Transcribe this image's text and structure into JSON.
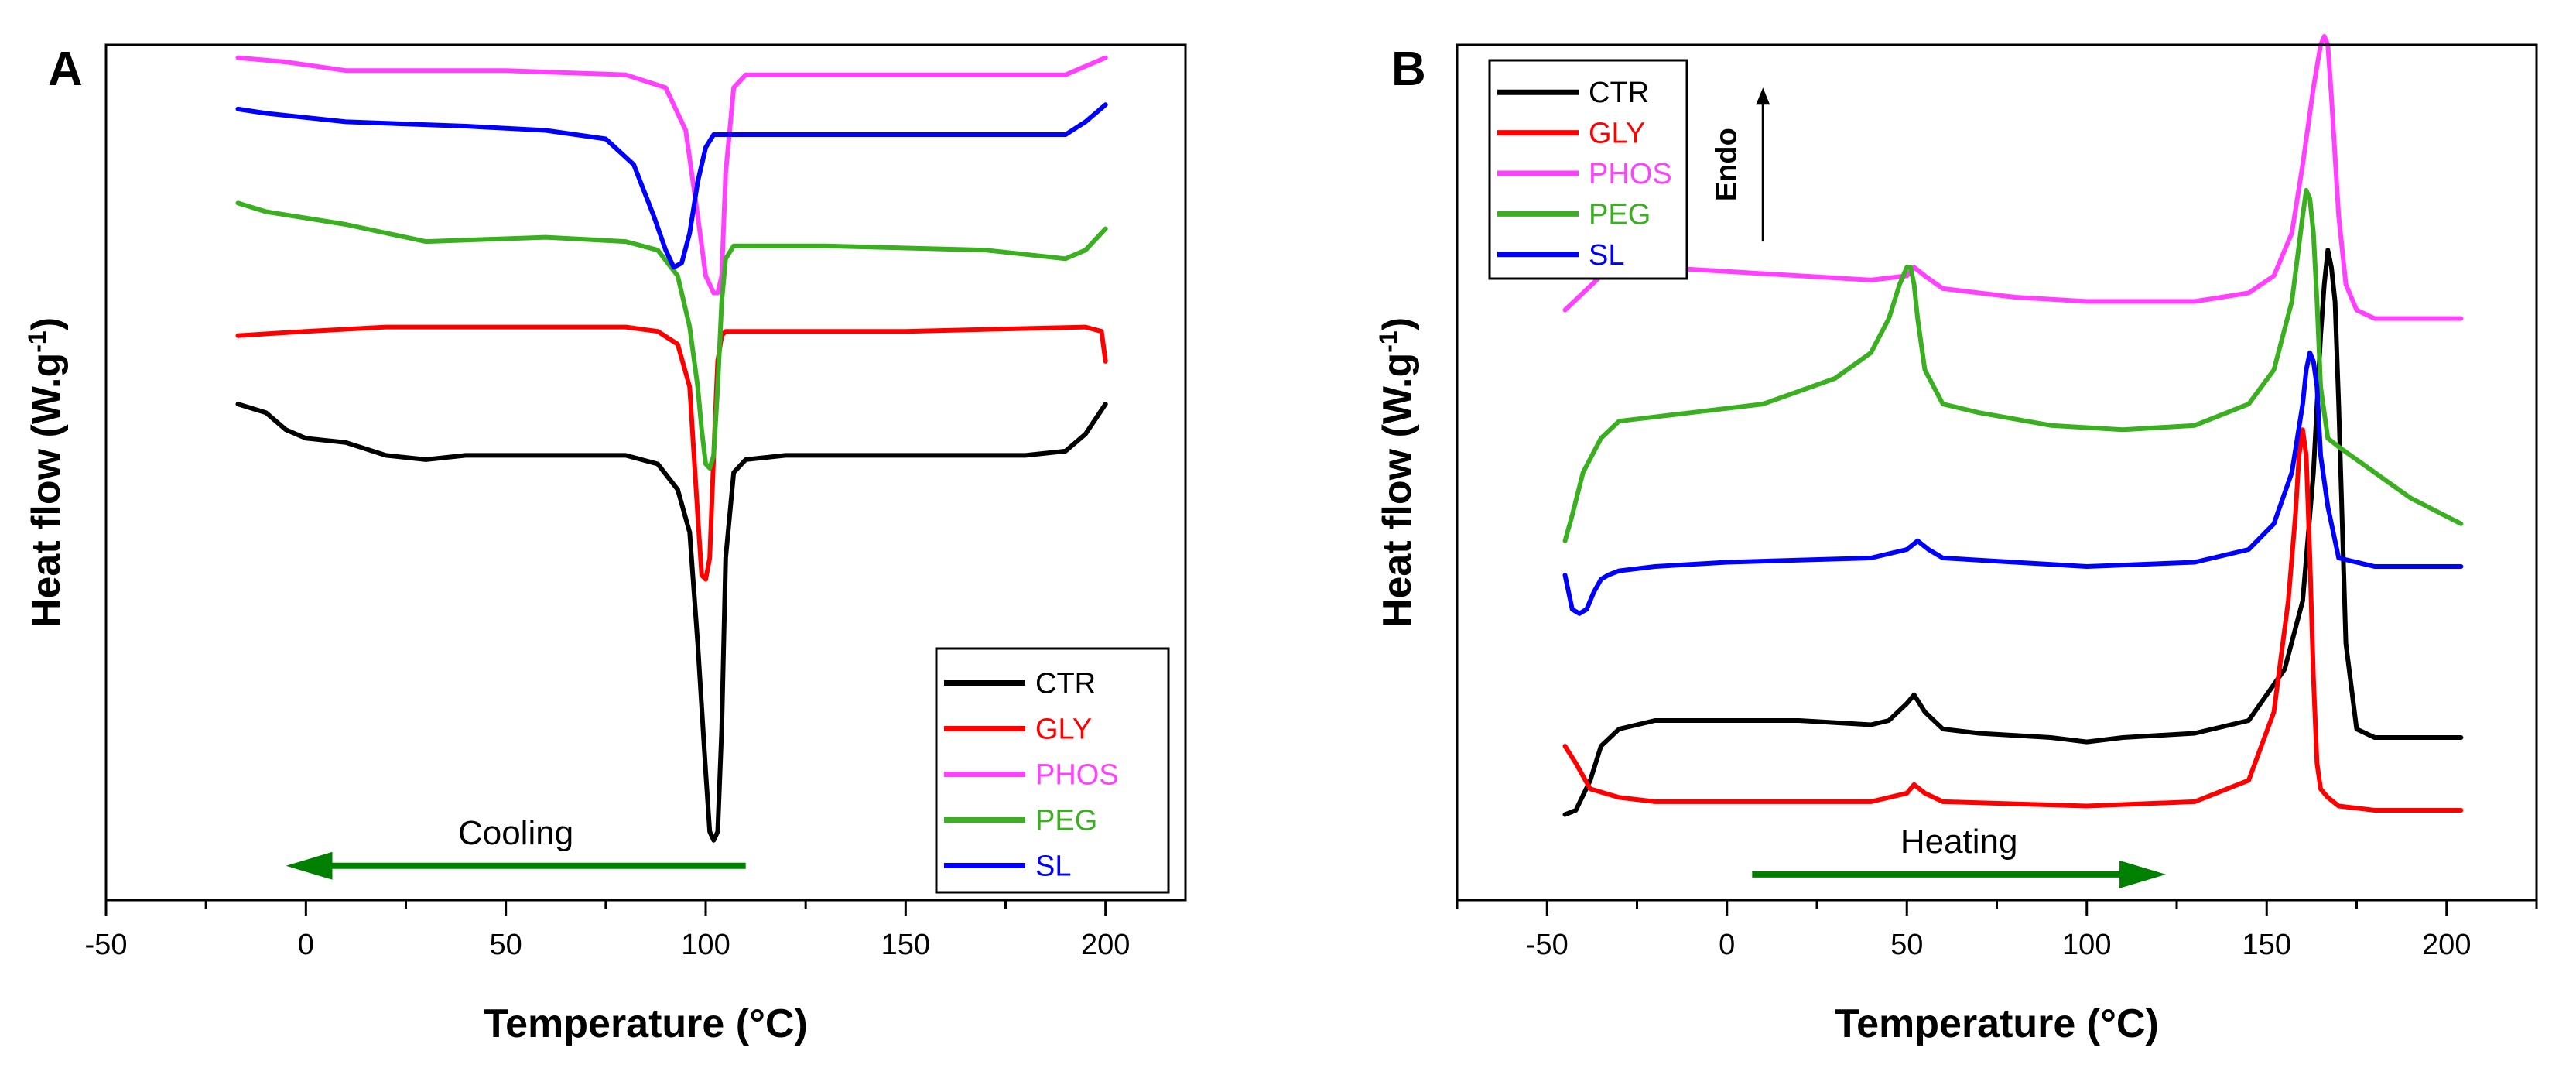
{
  "chart_data": [
    {
      "type": "line",
      "panel_label": "A",
      "xlabel": "Temperature (°C)",
      "ylabel_main": "Heat flow (W.g",
      "ylabel_sup": "-1",
      "ylabel_end": ")",
      "xlim": [
        -50,
        220
      ],
      "ylim": [
        0,
        100
      ],
      "xticks": [
        -50,
        0,
        50,
        100,
        150,
        200
      ],
      "yticks_shown": false,
      "legend_position": "bottom-right",
      "arrow": {
        "label": "Cooling",
        "direction": "left",
        "color": "#008000",
        "from_x": 110,
        "to_x": -5,
        "y": 4
      },
      "series": [
        {
          "name": "CTR",
          "color": "#000000",
          "x": [
            -17,
            -10,
            -5,
            0,
            10,
            20,
            30,
            40,
            60,
            80,
            88,
            93,
            96,
            98,
            100,
            101,
            102,
            103,
            104,
            105,
            107,
            110,
            120,
            150,
            180,
            190,
            195,
            200
          ],
          "y": [
            58,
            57,
            55,
            54,
            53.5,
            52,
            51.5,
            52,
            52,
            52,
            51,
            48,
            43,
            30,
            15,
            8,
            7,
            8,
            20,
            40,
            50,
            51.5,
            52,
            52,
            52,
            52.5,
            54.5,
            58
          ]
        },
        {
          "name": "GLY",
          "color": "#ff0000",
          "x": [
            -17,
            0,
            20,
            50,
            80,
            88,
            93,
            96,
            98,
            99,
            100,
            101,
            102,
            103,
            104,
            105,
            107,
            110,
            150,
            195,
            199,
            200
          ],
          "y": [
            66,
            66.5,
            67,
            67,
            67,
            66.5,
            65,
            60,
            45,
            38,
            37.5,
            40,
            52,
            63,
            66,
            66.5,
            66.5,
            66.5,
            66.5,
            67,
            66.5,
            63
          ]
        },
        {
          "name": "PHOS",
          "color": "#ff40ff",
          "x": [
            -17,
            -5,
            10,
            50,
            80,
            90,
            95,
            98,
            100,
            101,
            102,
            103,
            104,
            105,
            107,
            110,
            130,
            190,
            195,
            200
          ],
          "y": [
            98.5,
            98,
            97,
            97,
            96.5,
            95,
            90,
            80,
            73,
            72,
            71,
            71,
            73,
            85,
            95,
            96.5,
            96.5,
            96.5,
            97.5,
            98.5
          ]
        },
        {
          "name": "PEG",
          "color": "#3ab020",
          "x": [
            -17,
            -10,
            10,
            30,
            60,
            80,
            88,
            93,
            96,
            98,
            99,
            100,
            101,
            102,
            103,
            104,
            105,
            107,
            110,
            130,
            170,
            190,
            195,
            200
          ],
          "y": [
            81.5,
            80.5,
            79,
            77,
            77.5,
            77,
            76,
            73,
            67,
            60,
            55,
            51,
            50.5,
            52,
            60,
            70,
            75,
            76.5,
            76.5,
            76.5,
            76,
            75,
            76,
            78.5
          ]
        },
        {
          "name": "SL",
          "color": "#0000ff",
          "x": [
            -17,
            -10,
            10,
            40,
            60,
            75,
            82,
            87,
            90,
            92,
            94,
            96,
            98,
            100,
            102,
            105,
            110,
            130,
            160,
            190,
            195,
            200
          ],
          "y": [
            92.5,
            92,
            91,
            90.5,
            90,
            89,
            86,
            80,
            76,
            74,
            74.5,
            78,
            84,
            88,
            89.5,
            89.5,
            89.5,
            89.5,
            89.5,
            89.5,
            91,
            93
          ]
        }
      ]
    },
    {
      "type": "line",
      "panel_label": "B",
      "xlabel": "Temperature (°C)",
      "ylabel_main": "Heat flow (W.g",
      "ylabel_sup": "-1",
      "ylabel_end": ")",
      "xlim": [
        -75,
        225
      ],
      "ylim": [
        0,
        100
      ],
      "xticks": [
        -50,
        0,
        50,
        100,
        150,
        200
      ],
      "yticks_shown": false,
      "legend_position": "top-left",
      "annotation": {
        "label": "Endo",
        "direction": "up",
        "x": 10,
        "y_from": 77,
        "y_to": 95
      },
      "arrow": {
        "label": "Heating",
        "direction": "right",
        "color": "#008000",
        "from_x": 7,
        "to_x": 122,
        "y": 3
      },
      "series": [
        {
          "name": "CTR",
          "color": "#000000",
          "x": [
            -45,
            -42,
            -38,
            -35,
            -30,
            -20,
            0,
            20,
            40,
            45,
            50,
            52,
            55,
            60,
            70,
            90,
            100,
            110,
            130,
            145,
            155,
            160,
            163,
            165,
            166,
            167,
            168,
            169,
            170,
            172,
            175,
            180,
            200,
            204
          ],
          "y": [
            10,
            10.5,
            14,
            18,
            20,
            21,
            21,
            21,
            20.5,
            21,
            23,
            24,
            22,
            20,
            19.5,
            19,
            18.5,
            19,
            19.5,
            21,
            27,
            35,
            50,
            66,
            72,
            76,
            74,
            70,
            58,
            30,
            20,
            19,
            19,
            19
          ]
        },
        {
          "name": "GLY",
          "color": "#ff0000",
          "x": [
            -45,
            -42,
            -38,
            -30,
            -20,
            0,
            40,
            50,
            52,
            55,
            60,
            100,
            130,
            145,
            152,
            156,
            158,
            159,
            160,
            161,
            162,
            163,
            164,
            165,
            167,
            170,
            180,
            204
          ],
          "y": [
            18,
            16,
            13,
            12,
            11.5,
            11.5,
            11.5,
            12.5,
            13.5,
            12.5,
            11.5,
            11,
            11.5,
            14,
            22,
            35,
            45,
            52,
            55,
            52,
            40,
            26,
            16,
            13,
            12,
            11,
            10.5,
            10.5
          ]
        },
        {
          "name": "PHOS",
          "color": "#ff40ff",
          "x": [
            -45,
            -40,
            -35,
            -30,
            -20,
            0,
            40,
            50,
            52,
            55,
            60,
            80,
            100,
            130,
            145,
            152,
            157,
            160,
            163,
            165,
            166,
            167,
            168,
            170,
            172,
            175,
            180,
            200,
            204
          ],
          "y": [
            69,
            71,
            73,
            74,
            74,
            73.5,
            72.5,
            73,
            74,
            73,
            71.5,
            70.5,
            70,
            70,
            71,
            73,
            78,
            86,
            95,
            100,
            101,
            100,
            94,
            80,
            72,
            69,
            68,
            68,
            68
          ]
        },
        {
          "name": "PEG",
          "color": "#3ab020",
          "x": [
            -45,
            -43,
            -40,
            -35,
            -30,
            -20,
            -10,
            10,
            30,
            40,
            45,
            48,
            50,
            51,
            52,
            53,
            55,
            60,
            70,
            90,
            110,
            130,
            145,
            152,
            157,
            160,
            161,
            162,
            163,
            164,
            165,
            167,
            170,
            180,
            190,
            204
          ],
          "y": [
            42,
            45,
            50,
            54,
            56,
            56.5,
            57,
            58,
            61,
            64,
            68,
            72,
            74,
            74,
            72,
            68,
            62,
            58,
            57,
            55.5,
            55,
            55.5,
            58,
            62,
            70,
            80,
            83,
            82,
            78,
            70,
            60,
            54,
            53,
            50,
            47,
            44
          ]
        },
        {
          "name": "SL",
          "color": "#0000ff",
          "x": [
            -45,
            -43,
            -41,
            -39,
            -37,
            -35,
            -33,
            -30,
            -20,
            0,
            40,
            50,
            53,
            56,
            60,
            80,
            100,
            130,
            145,
            152,
            157,
            160,
            161,
            162,
            163,
            164,
            165,
            167,
            170,
            180,
            204
          ],
          "y": [
            38,
            34,
            33.5,
            34,
            36,
            37.5,
            38,
            38.5,
            39,
            39.5,
            40,
            41,
            42,
            41,
            40,
            39.5,
            39,
            39.5,
            41,
            44,
            50,
            58,
            62,
            64,
            63,
            60,
            52,
            46,
            40,
            39,
            39
          ]
        }
      ]
    }
  ]
}
